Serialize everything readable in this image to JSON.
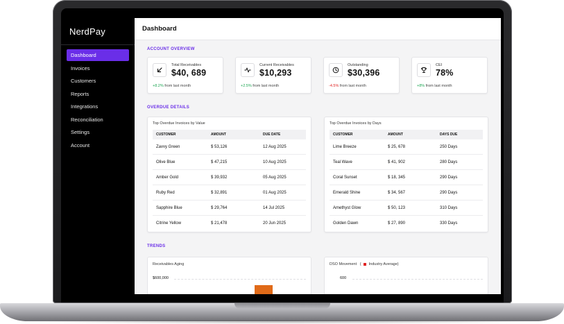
{
  "app": {
    "brand": "NerdPay"
  },
  "sidebar": {
    "items": [
      {
        "label": "Dashboard",
        "active": true
      },
      {
        "label": "Invoices"
      },
      {
        "label": "Customers"
      },
      {
        "label": "Reports"
      },
      {
        "label": "Integrations"
      },
      {
        "label": "Reconciliation"
      },
      {
        "label": "Settings"
      },
      {
        "label": "Account"
      }
    ]
  },
  "header": {
    "title": "Dashboard"
  },
  "overview": {
    "section_title": "ACCOUNT OVERVIEW",
    "cards": [
      {
        "label": "Total Receivables",
        "value": "$40, 689",
        "change": "+8.2%",
        "change_suffix": "from last month",
        "icon": "arrow-down-left-icon"
      },
      {
        "label": "Current Receivables",
        "value": "$10,293",
        "change": "+2.5%",
        "change_suffix": "from last month",
        "icon": "activity-icon"
      },
      {
        "label": "Outstanding",
        "value": "$30,396",
        "change": "-4.5%",
        "change_suffix": "from last month",
        "icon": "clock-icon"
      },
      {
        "label": "CEI",
        "value": "78%",
        "change": "+8%",
        "change_suffix": "from last month",
        "icon": "trophy-icon"
      }
    ]
  },
  "overdue": {
    "section_title": "OVERDUE DETAILS",
    "by_value": {
      "title": "Top Overdue Invoices by Value",
      "columns": [
        "CUSTOMER",
        "AMOUNT",
        "DUE DATE"
      ],
      "rows": [
        [
          "Zavvy Green",
          "$ 53,126",
          "12 Aug 2025"
        ],
        [
          "Olive Blue",
          "$ 47,215",
          "10 Aug 2025"
        ],
        [
          "Amber Gold",
          "$ 39,932",
          "05 Aug 2025"
        ],
        [
          "Ruby Red",
          "$ 32,891",
          "01 Aug 2025"
        ],
        [
          "Sapphire Blue",
          "$ 29,764",
          "14 Jul 2025"
        ],
        [
          "Citrine Yellow",
          "$ 21,478",
          "20 Jun 2025"
        ]
      ]
    },
    "by_days": {
      "title": "Top Overdue Invoices by Days",
      "columns": [
        "CUSTOMER",
        "AMOUNT",
        "DAYS DUE"
      ],
      "rows": [
        [
          "Lime Breeze",
          "$ 25, 678",
          "250 Days"
        ],
        [
          "Teal Wave",
          "$ 41, 902",
          "280 Days"
        ],
        [
          "Coral Sunset",
          "$ 18, 345",
          "290 Days"
        ],
        [
          "Emerald Shine",
          "$ 34, 567",
          "290 Days"
        ],
        [
          "Amethyst Glow",
          "$ 50, 123",
          "310 Days"
        ],
        [
          "Golden Dawn",
          "$ 27, 890",
          "330 Days"
        ]
      ]
    }
  },
  "trends": {
    "section_title": "TRENDS",
    "aging": {
      "title": "Receivables Aging",
      "tick": "$600,000"
    },
    "dso": {
      "title": "DSO Movement",
      "legend_open": "(",
      "legend_label": "Industry Average)",
      "tick": "600"
    }
  },
  "colors": {
    "accent": "#6a2ee8",
    "positive": "#1ea653",
    "negative": "#e02424",
    "bar": "#e06a18"
  }
}
